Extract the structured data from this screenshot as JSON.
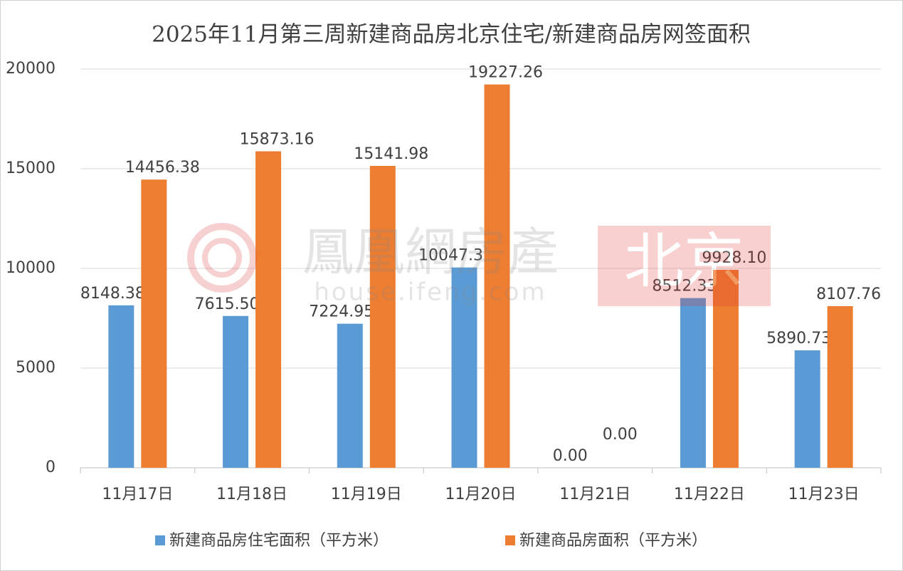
{
  "chart_data": {
    "type": "bar",
    "title": "2025年11月第三周新建商品房北京住宅/新建商品房网签面积",
    "categories": [
      "11月17日",
      "11月18日",
      "11月19日",
      "11月20日",
      "11月21日",
      "11月22日",
      "11月23日"
    ],
    "series": [
      {
        "name": "新建商品房住宅面积（平方米）",
        "color": "#5b9bd5",
        "values": [
          8148.38,
          7615.5,
          7224.95,
          10047.33,
          0,
          8512.33,
          5890.73
        ],
        "value_labels": [
          "8148.38",
          "7615.50",
          "7224.95",
          "10047.33",
          "0.00",
          "8512.33",
          "5890.73"
        ]
      },
      {
        "name": "新建商品房面积（平方米）",
        "color": "#ed7d31",
        "values": [
          14456.38,
          15873.16,
          15141.98,
          19227.26,
          0,
          9928.1,
          8107.76
        ],
        "value_labels": [
          "14456.38",
          "15873.16",
          "15141.98",
          "19227.26",
          "0.00",
          "9928.10",
          "8107.76"
        ]
      }
    ],
    "ylim": [
      0,
      20000
    ],
    "yticks": [
      0,
      5000,
      10000,
      15000,
      20000
    ],
    "grid": true,
    "legend": "bottom",
    "watermark": [
      "鳳凰網房產",
      "house.ifeng.com",
      "北京"
    ]
  }
}
